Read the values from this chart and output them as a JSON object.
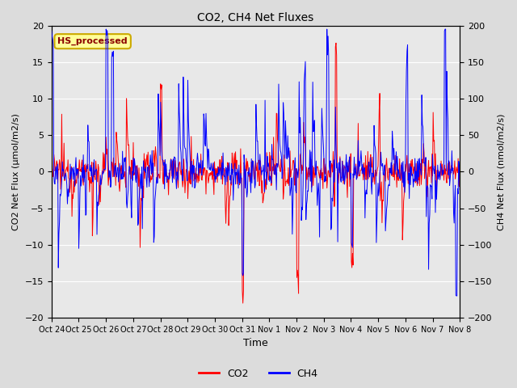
{
  "title": "CO2, CH4 Net Fluxes",
  "xlabel": "Time",
  "ylabel_left": "CO2 Net Flux (μmol/m2/s)",
  "ylabel_right": "CH4 Net Flux (nmol/m2/s)",
  "ylim_left": [
    -20,
    20
  ],
  "ylim_right": [
    -200,
    200
  ],
  "yticks_left": [
    -20,
    -15,
    -10,
    -5,
    0,
    5,
    10,
    15,
    20
  ],
  "yticks_right": [
    -200,
    -150,
    -100,
    -50,
    0,
    50,
    100,
    150,
    200
  ],
  "xtick_labels": [
    "Oct 24",
    "Oct 25",
    "Oct 26",
    "Oct 27",
    "Oct 28",
    "Oct 29",
    "Oct 30",
    "Oct 31",
    "Nov 1",
    "Nov 2",
    "Nov 3",
    "Nov 4",
    "Nov 5",
    "Nov 6",
    "Nov 7",
    "Nov 8"
  ],
  "co2_color": "#FF0000",
  "ch4_color": "#0000FF",
  "fig_bg_color": "#DCDCDC",
  "plot_bg_color": "#E8E8E8",
  "annotation_text": "HS_processed",
  "annotation_bg": "#FFFF99",
  "annotation_border": "#CCAA00",
  "annotation_text_color": "#8B0000",
  "legend_labels": [
    "CO2",
    "CH4"
  ],
  "grid_color": "#FFFFFF",
  "seed": 12345,
  "n_days": 15,
  "points_per_day": 48
}
